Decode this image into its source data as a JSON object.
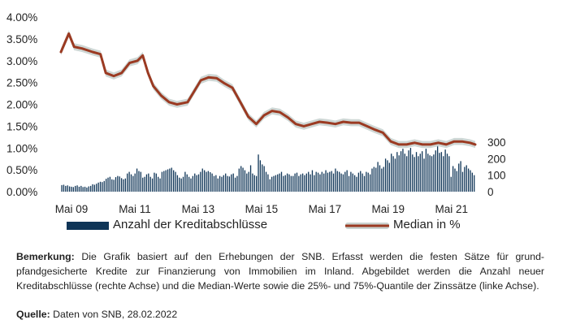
{
  "chart_data": {
    "type": "line",
    "title": "",
    "x_ticks": [
      "Mai 09",
      "Mai 11",
      "Mai 13",
      "Mai 15",
      "Mai 17",
      "Mai 19",
      "Mai 21"
    ],
    "y_left_ticks": [
      "4.00%",
      "3.50%",
      "3.00%",
      "2.50%",
      "2.00%",
      "1.50%",
      "1.00%",
      "0.50%",
      "0.00%"
    ],
    "y_left_range": [
      0,
      4
    ],
    "y_right_ticks": [
      "300",
      "200",
      "100",
      "0"
    ],
    "y_right_range": [
      0,
      300
    ],
    "x_range": [
      "2009-01",
      "2022-02"
    ],
    "series": [
      {
        "name": "Median in %",
        "axis": "left",
        "color": "#9b3a22",
        "band_color": "#c9d3d0",
        "points": [
          [
            "2009-01",
            3.2
          ],
          [
            "2009-04",
            3.62
          ],
          [
            "2009-06",
            3.32
          ],
          [
            "2009-09",
            3.28
          ],
          [
            "2010-01",
            3.2
          ],
          [
            "2010-04",
            3.15
          ],
          [
            "2010-06",
            2.72
          ],
          [
            "2010-09",
            2.65
          ],
          [
            "2010-12",
            2.72
          ],
          [
            "2011-03",
            2.95
          ],
          [
            "2011-06",
            3.0
          ],
          [
            "2011-08",
            3.12
          ],
          [
            "2011-10",
            2.72
          ],
          [
            "2011-12",
            2.42
          ],
          [
            "2012-03",
            2.2
          ],
          [
            "2012-06",
            2.05
          ],
          [
            "2012-09",
            2.0
          ],
          [
            "2013-01",
            2.05
          ],
          [
            "2013-03",
            2.25
          ],
          [
            "2013-06",
            2.55
          ],
          [
            "2013-09",
            2.62
          ],
          [
            "2013-12",
            2.6
          ],
          [
            "2014-03",
            2.48
          ],
          [
            "2014-06",
            2.38
          ],
          [
            "2014-09",
            2.05
          ],
          [
            "2014-12",
            1.72
          ],
          [
            "2015-03",
            1.55
          ],
          [
            "2015-06",
            1.75
          ],
          [
            "2015-09",
            1.85
          ],
          [
            "2015-12",
            1.82
          ],
          [
            "2016-03",
            1.7
          ],
          [
            "2016-06",
            1.55
          ],
          [
            "2016-09",
            1.5
          ],
          [
            "2016-12",
            1.55
          ],
          [
            "2017-03",
            1.6
          ],
          [
            "2017-06",
            1.58
          ],
          [
            "2017-09",
            1.55
          ],
          [
            "2017-12",
            1.6
          ],
          [
            "2018-03",
            1.58
          ],
          [
            "2018-06",
            1.58
          ],
          [
            "2018-09",
            1.5
          ],
          [
            "2018-12",
            1.42
          ],
          [
            "2019-03",
            1.35
          ],
          [
            "2019-06",
            1.15
          ],
          [
            "2019-09",
            1.08
          ],
          [
            "2019-12",
            1.08
          ],
          [
            "2020-03",
            1.12
          ],
          [
            "2020-06",
            1.08
          ],
          [
            "2020-09",
            1.08
          ],
          [
            "2020-12",
            1.12
          ],
          [
            "2021-03",
            1.08
          ],
          [
            "2021-06",
            1.15
          ],
          [
            "2021-09",
            1.15
          ],
          [
            "2021-12",
            1.12
          ],
          [
            "2022-02",
            1.08
          ]
        ],
        "band_halfwidth": 0.08
      },
      {
        "name": "Anzahl der Kreditabschlüsse",
        "axis": "right",
        "type": "bar",
        "color": "#0f3557",
        "values": [
          40,
          42,
          35,
          38,
          32,
          30,
          28,
          35,
          38,
          30,
          35,
          28,
          30,
          25,
          32,
          35,
          45,
          42,
          48,
          55,
          60,
          58,
          65,
          78,
          85,
          90,
          75,
          72,
          88,
          95,
          92,
          82,
          75,
          80,
          110,
          120,
          105,
          95,
          110,
          140,
          125,
          120,
          85,
          90,
          105,
          110,
          90,
          80,
          115,
          110,
          90,
          80,
          120,
          125,
          130,
          135,
          140,
          145,
          130,
          120,
          100,
          85,
          80,
          90,
          120,
          105,
          90,
          80,
          95,
          110,
          100,
          105,
          120,
          140,
          130,
          120,
          125,
          118,
          110,
          95,
          100,
          80,
          95,
          90,
          100,
          110,
          95,
          92,
          105,
          110,
          85,
          95,
          140,
          155,
          145,
          130,
          110,
          120,
          160,
          110,
          100,
          95,
          225,
          190,
          165,
          155,
          120,
          105,
          75,
          90,
          95,
          100,
          105,
          110,
          120,
          95,
          100,
          110,
          105,
          95,
          95,
          110,
          115,
          95,
          105,
          110,
          100,
          110,
          120,
          105,
          130,
          100,
          120,
          115,
          105,
          120,
          110,
          130,
          115,
          120,
          125,
          110,
          140,
          125,
          120,
          110,
          105,
          120,
          130,
          95,
          120,
          110,
          100,
          90,
          115,
          125,
          110,
          95,
          120,
          115,
          105,
          140,
          150,
          145,
          180,
          160,
          140,
          150,
          200,
          190,
          175,
          230,
          215,
          200,
          240,
          220,
          245,
          260,
          230,
          215,
          250,
          265,
          225,
          210,
          240,
          215,
          230,
          245,
          200,
          260,
          230,
          220,
          215,
          225,
          250,
          280,
          235,
          240,
          215,
          255,
          230,
          215,
          90,
          155,
          140,
          125,
          170,
          185,
          120,
          150,
          160,
          140,
          130,
          115,
          100
        ]
      }
    ]
  },
  "legend": {
    "bars_label": "Anzahl der Kreditabschlüsse",
    "line_label": "Median in %"
  },
  "note": {
    "label": "Bemerkung:",
    "text": " Die Grafik basiert auf den Erhebungen der SNB. Erfasst werden die festen Sätze für grund-pfandgesicherte Kredite zur Finanzierung von Immobilien im Inland. Abgebildet werden die Anzahl neuer Kreditabschlüsse (rechte Achse) und die Median-Werte sowie die 25%- und 75%-Quantile der Zinssätze (linke Achse)."
  },
  "source": {
    "label": "Quelle:",
    "text": " Daten von SNB, 28.02.2022"
  },
  "colors": {
    "median": "#9b3a22",
    "band": "#c9d3d0",
    "bars": "#0f3557"
  }
}
